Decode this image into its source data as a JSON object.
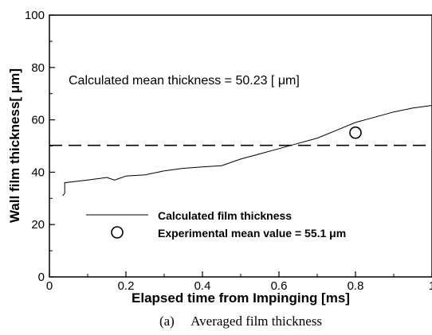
{
  "chart_data": {
    "type": "line",
    "title": "",
    "xlabel": "Elapsed time from Impinging [ms]",
    "ylabel": "Wall film thickness[  μm]",
    "xlim": [
      0,
      1
    ],
    "ylim": [
      0,
      100
    ],
    "x_ticks": [
      "0",
      "0.2",
      "0.4",
      "0.6",
      "0.8",
      "1"
    ],
    "y_ticks": [
      "0",
      "20",
      "40",
      "60",
      "80",
      "100"
    ],
    "grid": false,
    "series": [
      {
        "name": "Calculated film thickness",
        "style": "solid",
        "x": [
          0.035,
          0.04,
          0.04,
          0.1,
          0.15,
          0.17,
          0.2,
          0.25,
          0.3,
          0.35,
          0.4,
          0.45,
          0.5,
          0.55,
          0.6,
          0.65,
          0.7,
          0.75,
          0.8,
          0.85,
          0.9,
          0.95,
          1.0
        ],
        "values": [
          31,
          32,
          36,
          37,
          38,
          37,
          38.5,
          39,
          40.5,
          41.5,
          42,
          42.5,
          45,
          47,
          49,
          51,
          53,
          56,
          59,
          61,
          63,
          64.5,
          65.5
        ]
      },
      {
        "name": "",
        "style": "dashed",
        "x": [
          0,
          1
        ],
        "values": [
          50.23,
          50.23
        ]
      },
      {
        "name": "Experimental mean value = 55.1 μm",
        "style": "marker-circle",
        "x": [
          0.8
        ],
        "values": [
          55.1
        ]
      }
    ],
    "annotation": "Calculated mean thickness = 50.23 [  μm]",
    "legend": {
      "placement": "bottom-left",
      "entries": [
        "Calculated film thickness",
        "Experimental mean value = 55.1 μm"
      ]
    }
  },
  "caption": "(a)     Averaged film thickness"
}
